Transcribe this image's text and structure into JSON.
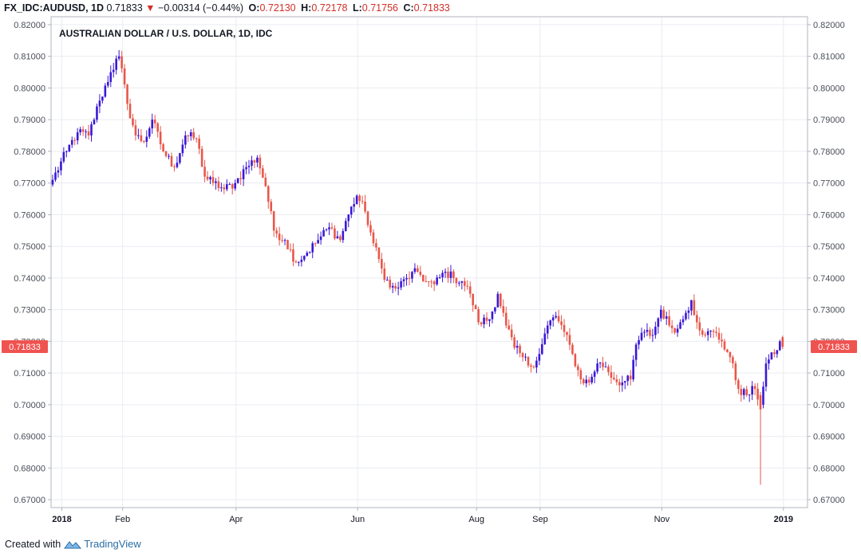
{
  "header": {
    "symbol": "FX_IDC:AUDUSD, 1D",
    "last": "0.71833",
    "arrow": "▼",
    "change": "−0.00314 (−0.44%)",
    "o_label": "O:",
    "o_value": "0.72130",
    "h_label": "H:",
    "h_value": "0.72178",
    "l_label": "L:",
    "l_value": "0.71756",
    "c_label": "C:",
    "c_value": "0.71833"
  },
  "chart_data": {
    "type": "candlestick",
    "title": "AUSTRALIAN DOLLAR / U.S. DOLLAR, 1D, IDC",
    "ylim": [
      0.6675,
      0.8225
    ],
    "y_ticks": [
      "0.82000",
      "0.81000",
      "0.80000",
      "0.79000",
      "0.78000",
      "0.77000",
      "0.76000",
      "0.75000",
      "0.74000",
      "0.73000",
      "0.72000",
      "0.71000",
      "0.70000",
      "0.69000",
      "0.68000",
      "0.67000"
    ],
    "x_ticks": [
      {
        "label": "2018",
        "index": 1,
        "bold": true
      },
      {
        "label": "Feb",
        "index": 23
      },
      {
        "label": "Apr",
        "index": 64
      },
      {
        "label": "Jun",
        "index": 108
      },
      {
        "label": "Aug",
        "index": 151
      },
      {
        "label": "Sep",
        "index": 174
      },
      {
        "label": "Nov",
        "index": 218
      },
      {
        "label": "2019",
        "index": 262,
        "bold": true
      }
    ],
    "last_price_label": "0.71833",
    "up_color": "#3b18d6",
    "down_color": "#e8574a",
    "anchors": [
      [
        0,
        0.771
      ],
      [
        5,
        0.78
      ],
      [
        9,
        0.786
      ],
      [
        13,
        0.785
      ],
      [
        17,
        0.796
      ],
      [
        21,
        0.805
      ],
      [
        24,
        0.81
      ],
      [
        27,
        0.795
      ],
      [
        30,
        0.785
      ],
      [
        33,
        0.783
      ],
      [
        36,
        0.79
      ],
      [
        40,
        0.78
      ],
      [
        44,
        0.775
      ],
      [
        48,
        0.785
      ],
      [
        52,
        0.784
      ],
      [
        55,
        0.772
      ],
      [
        58,
        0.77
      ],
      [
        62,
        0.768
      ],
      [
        66,
        0.77
      ],
      [
        70,
        0.775
      ],
      [
        74,
        0.778
      ],
      [
        77,
        0.769
      ],
      [
        80,
        0.755
      ],
      [
        84,
        0.752
      ],
      [
        88,
        0.745
      ],
      [
        92,
        0.748
      ],
      [
        96,
        0.752
      ],
      [
        100,
        0.756
      ],
      [
        104,
        0.752
      ],
      [
        106,
        0.758
      ],
      [
        110,
        0.766
      ],
      [
        113,
        0.761
      ],
      [
        116,
        0.751
      ],
      [
        119,
        0.743
      ],
      [
        122,
        0.737
      ],
      [
        125,
        0.737
      ],
      [
        128,
        0.74
      ],
      [
        132,
        0.742
      ],
      [
        135,
        0.739
      ],
      [
        138,
        0.738
      ],
      [
        142,
        0.742
      ],
      [
        145,
        0.74
      ],
      [
        148,
        0.739
      ],
      [
        151,
        0.735
      ],
      [
        154,
        0.726
      ],
      [
        158,
        0.727
      ],
      [
        161,
        0.735
      ],
      [
        164,
        0.725
      ],
      [
        167,
        0.718
      ],
      [
        170,
        0.715
      ],
      [
        173,
        0.712
      ],
      [
        176,
        0.716
      ],
      [
        179,
        0.725
      ],
      [
        182,
        0.728
      ],
      [
        185,
        0.723
      ],
      [
        188,
        0.716
      ],
      [
        191,
        0.708
      ],
      [
        194,
        0.707
      ],
      [
        197,
        0.713
      ],
      [
        200,
        0.712
      ],
      [
        203,
        0.708
      ],
      [
        206,
        0.707
      ],
      [
        209,
        0.708
      ],
      [
        211,
        0.719
      ],
      [
        214,
        0.723
      ],
      [
        217,
        0.722
      ],
      [
        220,
        0.73
      ],
      [
        223,
        0.725
      ],
      [
        226,
        0.724
      ],
      [
        229,
        0.729
      ],
      [
        231,
        0.733
      ],
      [
        233,
        0.726
      ],
      [
        236,
        0.722
      ],
      [
        239,
        0.723
      ],
      [
        242,
        0.72
      ],
      [
        245,
        0.715
      ],
      [
        248,
        0.705
      ],
      [
        251,
        0.703
      ],
      [
        254,
        0.705
      ],
      [
        256,
        0.7
      ],
      [
        258,
        0.713
      ],
      [
        261,
        0.716
      ],
      [
        263,
        0.72
      ],
      [
        264,
        0.7183
      ]
    ],
    "special_bars": [
      {
        "index": 256,
        "open": 0.703,
        "high": 0.704,
        "low": 0.6747,
        "close": 0.6985
      },
      {
        "index": 264,
        "open": 0.7213,
        "high": 0.7218,
        "low": 0.7176,
        "close": 0.7183
      }
    ]
  },
  "footer": {
    "created_with": "Created with",
    "brand": "TradingView"
  }
}
